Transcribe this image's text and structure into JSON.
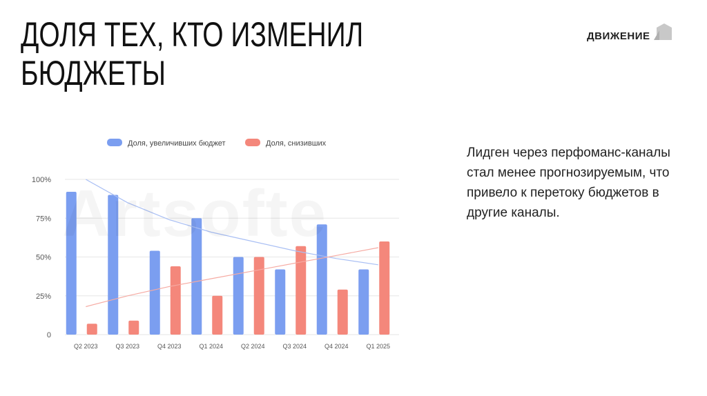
{
  "slide": {
    "title_line1": "ДОЛЯ ТЕХ, КТО ИЗМЕНИЛ",
    "title_line2": "БЮДЖЕТЫ",
    "brand": "ДВИЖЕНИЕ",
    "description": "Лидген через перфоманс-каналы стал менее прогнозируемым, что привело к перетоку бюджетов в другие каналы."
  },
  "chart_data": {
    "type": "bar",
    "categories": [
      "Q2 2023",
      "Q3 2023",
      "Q4 2023",
      "Q1 2024",
      "Q2 2024",
      "Q3 2024",
      "Q4 2024",
      "Q1 2025"
    ],
    "series": [
      {
        "name": "Доля, увеличивших бюджет",
        "color": "#7b9ef0",
        "values": [
          92,
          90,
          54,
          75,
          50,
          42,
          71,
          42
        ]
      },
      {
        "name": "Доля, снизивших",
        "color": "#f4877b",
        "values": [
          7,
          9,
          44,
          25,
          50,
          57,
          29,
          60
        ]
      }
    ],
    "trendlines": [
      {
        "series": "Доля, увеличивших бюджет",
        "color": "#a9bff4",
        "values": [
          100,
          85,
          74,
          66,
          60,
          54,
          49,
          45
        ]
      },
      {
        "series": "Доля, снизивших",
        "color": "#f6aaa2",
        "values": [
          18,
          25,
          31,
          36,
          41,
          46,
          51,
          56
        ]
      }
    ],
    "ylim": [
      0,
      100
    ],
    "yticks": [
      0,
      25,
      50,
      75,
      100
    ],
    "ytick_labels": [
      "0",
      "25%",
      "50%",
      "75%",
      "100%"
    ],
    "grid": true,
    "legend": "top-center",
    "watermark": "Artsofte"
  }
}
